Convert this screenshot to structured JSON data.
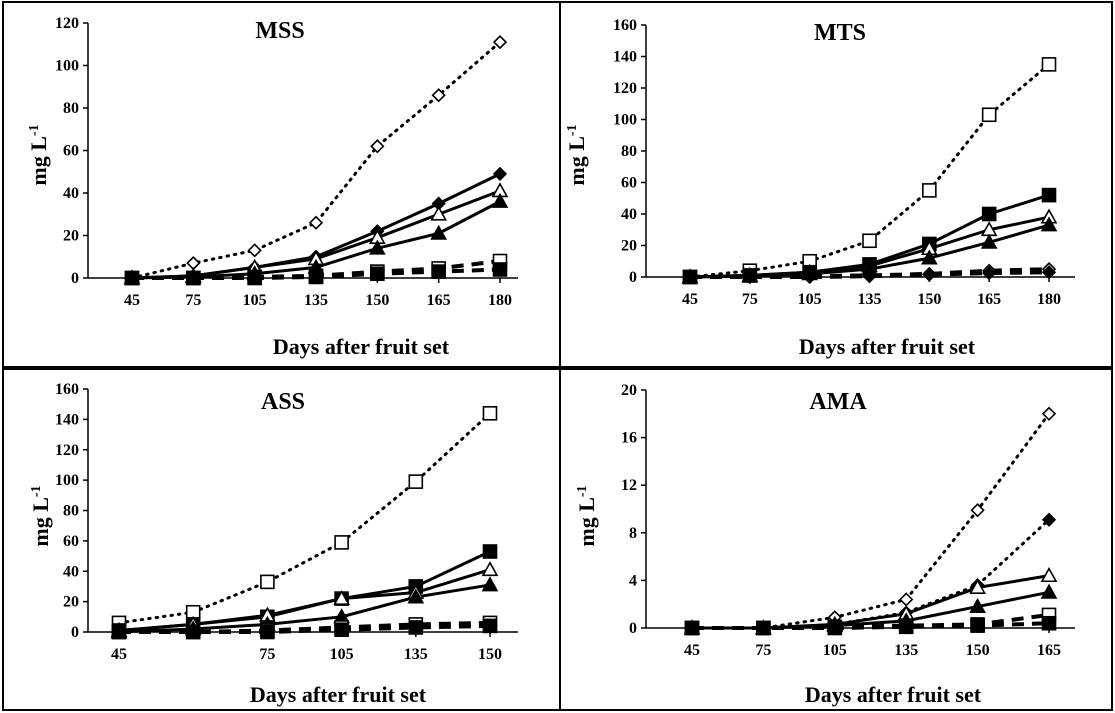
{
  "chart_data": [
    {
      "type": "line",
      "title": "MSS",
      "xlabel": "Days after fruit set",
      "ylabel": "mg L",
      "ylabel_sup": "-1",
      "categories": [
        "45",
        "75",
        "105",
        "135",
        "150",
        "165",
        "180"
      ],
      "ylim": [
        0,
        120
      ],
      "yticks": [
        0,
        20,
        40,
        60,
        80,
        100,
        120
      ],
      "grid": false,
      "series": [
        {
          "marker": "open-diamond",
          "line": "dotted",
          "values": [
            0,
            7,
            13,
            26,
            62,
            86,
            111
          ]
        },
        {
          "marker": "filled-diamond",
          "line": "solid",
          "values": [
            0,
            1,
            5,
            10,
            22,
            35,
            49
          ]
        },
        {
          "marker": "open-triangle",
          "line": "solid",
          "values": [
            0,
            1,
            5,
            9,
            19,
            30,
            41
          ]
        },
        {
          "marker": "filled-triangle",
          "line": "solid",
          "values": [
            0,
            0.5,
            2,
            5,
            14,
            21,
            36
          ]
        },
        {
          "marker": "open-square",
          "line": "dashed",
          "values": [
            0,
            0,
            0.5,
            1,
            3,
            4.5,
            8
          ]
        },
        {
          "marker": "filled-square",
          "line": "dashed",
          "values": [
            0,
            0,
            0,
            0.5,
            2,
            3,
            4
          ]
        }
      ]
    },
    {
      "type": "line",
      "title": "MTS",
      "xlabel": "Days  after fruit set",
      "ylabel": "mg L",
      "ylabel_sup": "-1",
      "categories": [
        "45",
        "75",
        "105",
        "135",
        "150",
        "165",
        "180"
      ],
      "ylim": [
        0,
        160
      ],
      "yticks": [
        0,
        20,
        40,
        60,
        80,
        100,
        120,
        140,
        160
      ],
      "grid": false,
      "series": [
        {
          "marker": "open-square",
          "line": "dotted",
          "values": [
            0,
            4,
            10,
            23,
            55,
            103,
            135
          ]
        },
        {
          "marker": "filled-square",
          "line": "solid",
          "values": [
            0,
            1,
            3,
            8,
            21,
            40,
            52
          ]
        },
        {
          "marker": "open-triangle",
          "line": "solid",
          "values": [
            0,
            1,
            3,
            7,
            18,
            30,
            38
          ]
        },
        {
          "marker": "filled-triangle",
          "line": "solid",
          "values": [
            0,
            0.5,
            2,
            5,
            12,
            22,
            33
          ]
        },
        {
          "marker": "open-diamond",
          "line": "dashed",
          "values": [
            0,
            0,
            0.5,
            1,
            2,
            4,
            5
          ]
        },
        {
          "marker": "filled-diamond",
          "line": "dashed",
          "values": [
            0,
            0,
            0,
            0.5,
            1.5,
            2.5,
            3
          ]
        }
      ]
    },
    {
      "type": "line",
      "title": "ASS",
      "xlabel": "Days after fruit set",
      "ylabel": "mg L",
      "ylabel_sup": "-1",
      "categories": [
        "45",
        "",
        "75",
        "105",
        "135",
        "150"
      ],
      "ylim": [
        0,
        160
      ],
      "yticks": [
        0,
        20,
        40,
        60,
        80,
        100,
        120,
        140,
        160
      ],
      "grid": false,
      "series": [
        {
          "marker": "open-square",
          "line": "dotted",
          "values": [
            6,
            13,
            33,
            59,
            99,
            144
          ]
        },
        {
          "marker": "filled-square",
          "line": "solid",
          "values": [
            1,
            5,
            10,
            22,
            30,
            53
          ]
        },
        {
          "marker": "open-triangle",
          "line": "solid",
          "values": [
            1,
            5,
            11,
            22,
            26,
            41
          ]
        },
        {
          "marker": "filled-triangle",
          "line": "solid",
          "values": [
            0,
            2,
            5,
            10,
            23,
            31
          ]
        },
        {
          "marker": "open-square",
          "line": "dashed",
          "values": [
            0,
            0,
            1,
            3,
            5,
            6
          ]
        },
        {
          "marker": "filled-square",
          "line": "dashed",
          "values": [
            0,
            0,
            0,
            1.5,
            3,
            4
          ]
        }
      ]
    },
    {
      "type": "line",
      "title": "AMA",
      "xlabel": "Days after fruit set",
      "ylabel": "mg L",
      "ylabel_sup": "-1",
      "categories": [
        "45",
        "75",
        "105",
        "135",
        "150",
        "165"
      ],
      "ylim": [
        0,
        20
      ],
      "yticks": [
        0,
        4,
        8,
        12,
        16,
        20
      ],
      "grid": false,
      "series": [
        {
          "marker": "open-diamond",
          "line": "dotted",
          "values": [
            0,
            0,
            0.9,
            2.4,
            9.9,
            18
          ]
        },
        {
          "marker": "filled-diamond",
          "line": "dotted",
          "values": [
            0,
            0,
            0.3,
            1.3,
            3.6,
            9.1
          ]
        },
        {
          "marker": "open-triangle",
          "line": "solid",
          "values": [
            0,
            0,
            0.3,
            1.2,
            3.4,
            4.4
          ]
        },
        {
          "marker": "filled-triangle",
          "line": "solid",
          "values": [
            0,
            0,
            0.2,
            0.6,
            1.8,
            3
          ]
        },
        {
          "marker": "open-square",
          "line": "dashed",
          "values": [
            0,
            0,
            0.1,
            0.2,
            0.3,
            1.1
          ]
        },
        {
          "marker": "filled-square",
          "line": "dashed",
          "values": [
            0,
            0,
            0,
            0.1,
            0.2,
            0.4
          ]
        }
      ]
    }
  ]
}
